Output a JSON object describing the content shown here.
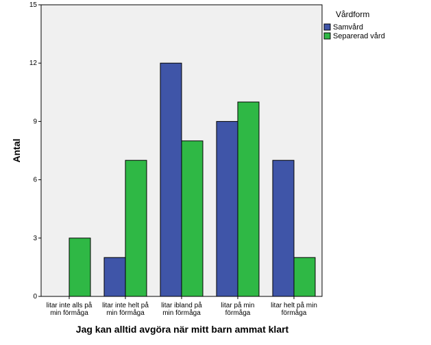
{
  "chart_data": {
    "type": "bar",
    "xlabel": "Jag kan alltid avgöra när mitt barn ammat klart",
    "ylabel": "Antal",
    "ylim": [
      0,
      15
    ],
    "yticks": [
      "0",
      "3",
      "6",
      "9",
      "12",
      "15"
    ],
    "grid": false,
    "legend_position": "right",
    "legend_title": "Vårdform",
    "categories": [
      [
        "litar inte alls på",
        "min förmåga"
      ],
      [
        "litar inte helt på",
        "min förmåga"
      ],
      [
        "litar ibland på",
        "min förmåga"
      ],
      [
        "litar på min",
        "förmåga"
      ],
      [
        "litar helt på min",
        "förmåga"
      ]
    ],
    "series": [
      {
        "name": "Samvård",
        "color": "#3f55a8",
        "values": [
          0,
          2,
          12,
          9,
          7
        ]
      },
      {
        "name": "Separerad vård",
        "color": "#2fb845",
        "values": [
          3,
          7,
          8,
          10,
          2
        ]
      }
    ],
    "plot_background": "#f0f0f0"
  }
}
